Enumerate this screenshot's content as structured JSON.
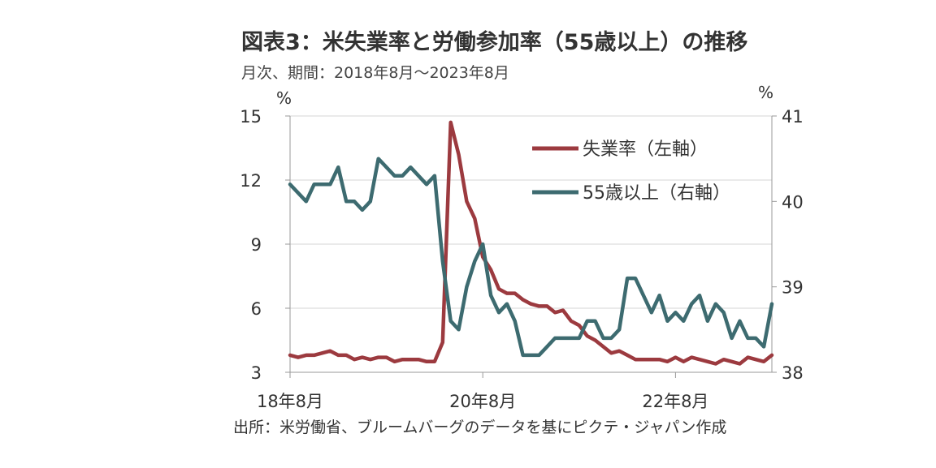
{
  "header": {
    "title": "図表3：米失業率と労働参加率（55歳以上）の推移",
    "subtitle": "月次、期間：2018年8月～2023年8月"
  },
  "footer": {
    "source": "出所：米労働省、ブルームバーグのデータを基にピクテ・ジャパン作成"
  },
  "chart_data": {
    "type": "line",
    "title": "",
    "xlabel": "",
    "x": [
      "2018-08",
      "2018-09",
      "2018-10",
      "2018-11",
      "2018-12",
      "2019-01",
      "2019-02",
      "2019-03",
      "2019-04",
      "2019-05",
      "2019-06",
      "2019-07",
      "2019-08",
      "2019-09",
      "2019-10",
      "2019-11",
      "2019-12",
      "2020-01",
      "2020-02",
      "2020-03",
      "2020-04",
      "2020-05",
      "2020-06",
      "2020-07",
      "2020-08",
      "2020-09",
      "2020-10",
      "2020-11",
      "2020-12",
      "2021-01",
      "2021-02",
      "2021-03",
      "2021-04",
      "2021-05",
      "2021-06",
      "2021-07",
      "2021-08",
      "2021-09",
      "2021-10",
      "2021-11",
      "2021-12",
      "2022-01",
      "2022-02",
      "2022-03",
      "2022-04",
      "2022-05",
      "2022-06",
      "2022-07",
      "2022-08",
      "2022-09",
      "2022-10",
      "2022-11",
      "2022-12",
      "2023-01",
      "2023-02",
      "2023-03",
      "2023-04",
      "2023-05",
      "2023-06",
      "2023-07",
      "2023-08"
    ],
    "x_ticks": [
      "18年8月",
      "20年8月",
      "22年8月"
    ],
    "x_tick_index": [
      0,
      24,
      48
    ],
    "left_axis": {
      "unit": "%",
      "ylim": [
        3,
        15
      ],
      "ticks": [
        "15",
        "12",
        "9",
        "6",
        "3"
      ],
      "tick_values": [
        15,
        12,
        9,
        6,
        3
      ]
    },
    "right_axis": {
      "unit": "%",
      "ylim": [
        38,
        41
      ],
      "ticks": [
        "41",
        "40",
        "39",
        "38"
      ],
      "tick_values": [
        41,
        40,
        39,
        38
      ]
    },
    "grid": "horizontal",
    "legend_position": "top-right",
    "series": [
      {
        "name": "失業率（左軸）",
        "axis": "left",
        "color": "#9c3a3f",
        "values": [
          3.8,
          3.7,
          3.8,
          3.8,
          3.9,
          4.0,
          3.8,
          3.8,
          3.6,
          3.7,
          3.6,
          3.7,
          3.7,
          3.5,
          3.6,
          3.6,
          3.6,
          3.5,
          3.5,
          4.4,
          14.7,
          13.2,
          11.0,
          10.2,
          8.4,
          7.8,
          6.9,
          6.7,
          6.7,
          6.4,
          6.2,
          6.1,
          6.1,
          5.8,
          5.9,
          5.4,
          5.2,
          4.7,
          4.5,
          4.2,
          3.9,
          4.0,
          3.8,
          3.6,
          3.6,
          3.6,
          3.6,
          3.5,
          3.7,
          3.5,
          3.7,
          3.6,
          3.5,
          3.4,
          3.6,
          3.5,
          3.4,
          3.7,
          3.6,
          3.5,
          3.8
        ]
      },
      {
        "name": "55歳以上（右軸）",
        "axis": "right",
        "color": "#3d6b70",
        "values": [
          40.2,
          40.1,
          40.0,
          40.2,
          40.2,
          40.2,
          40.4,
          40.0,
          40.0,
          39.9,
          40.0,
          40.5,
          40.4,
          40.3,
          40.3,
          40.4,
          40.3,
          40.2,
          40.3,
          39.3,
          38.6,
          38.5,
          39.0,
          39.3,
          39.5,
          38.9,
          38.7,
          38.8,
          38.6,
          38.2,
          38.2,
          38.2,
          38.3,
          38.4,
          38.4,
          38.4,
          38.4,
          38.6,
          38.6,
          38.4,
          38.4,
          38.5,
          39.1,
          39.1,
          38.9,
          38.7,
          38.9,
          38.6,
          38.7,
          38.6,
          38.8,
          38.9,
          38.6,
          38.8,
          38.7,
          38.4,
          38.6,
          38.4,
          38.4,
          38.3,
          38.8
        ]
      }
    ]
  }
}
